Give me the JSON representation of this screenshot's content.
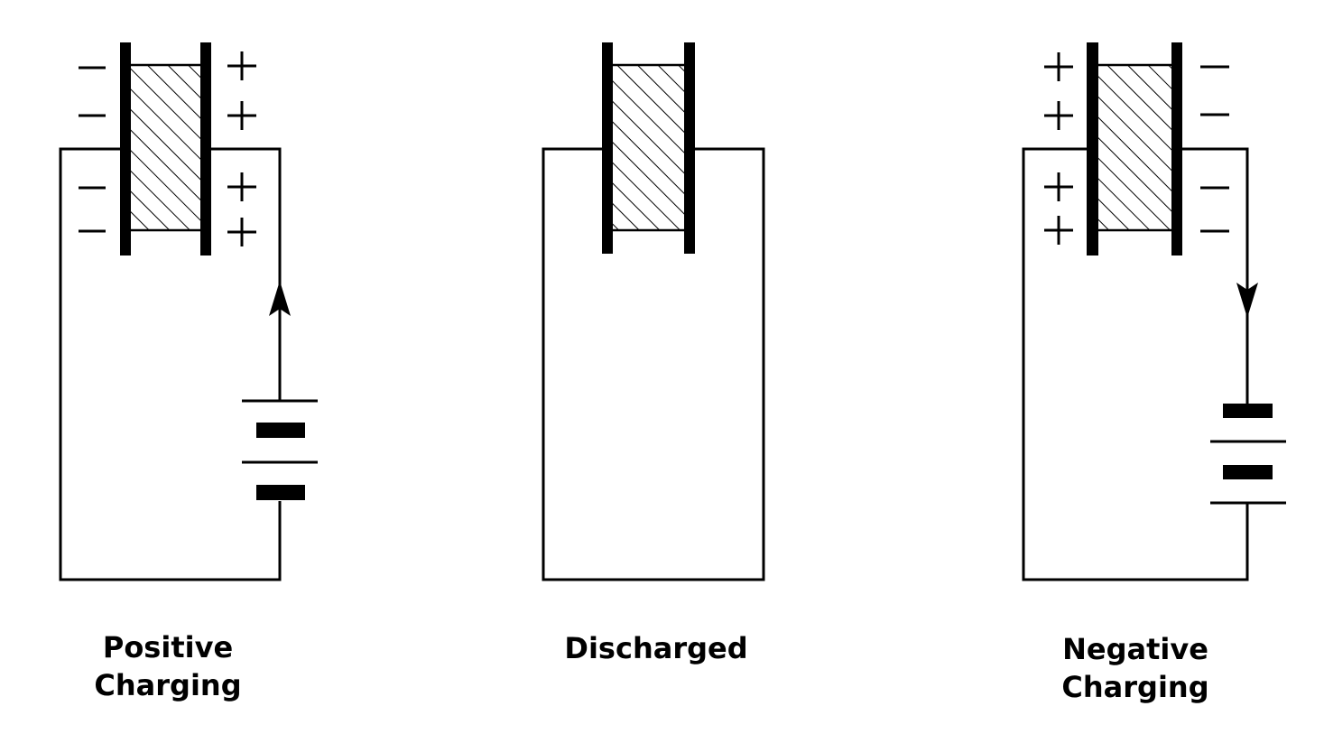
{
  "panels": [
    {
      "id": "positive",
      "caption_lines": [
        "Positive",
        "Charging"
      ],
      "left_plate_sign": "−",
      "right_plate_sign": "+",
      "current_direction": "up"
    },
    {
      "id": "discharged",
      "caption_lines": [
        "Discharged"
      ],
      "left_plate_sign": "",
      "right_plate_sign": "",
      "current_direction": "none"
    },
    {
      "id": "negative",
      "caption_lines": [
        "Negative",
        "Charging"
      ],
      "left_plate_sign": "+",
      "right_plate_sign": "−",
      "current_direction": "down"
    }
  ],
  "colors": {
    "ink": "#000000",
    "background": "#ffffff"
  }
}
